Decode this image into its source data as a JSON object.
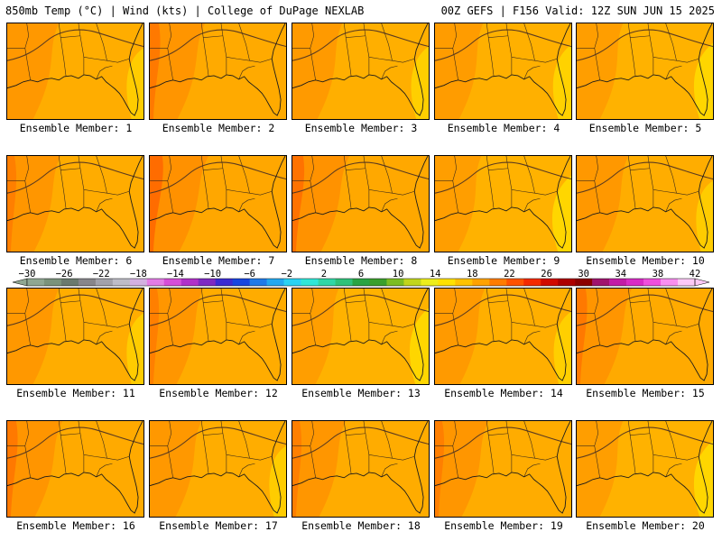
{
  "header": {
    "left_text": "850mb Temp (°C) | Wind (kts) | College of DuPage NEXLAB",
    "right_text": "00Z GEFS | F156 Valid: 12Z SUN JUN 15 2025"
  },
  "colorbar": {
    "tick_labels": [
      "−30",
      "−26",
      "−22",
      "−18",
      "−14",
      "−10",
      "−6",
      "−2",
      "2",
      "6",
      "10",
      "14",
      "18",
      "22",
      "26",
      "30",
      "34",
      "38",
      "42"
    ],
    "colors": [
      "#8fa792",
      "#7a937c",
      "#6a7a6e",
      "#87868a",
      "#a2a2aa",
      "#bdbdc7",
      "#d3b1e1",
      "#e37ce6",
      "#d64fd9",
      "#b030c9",
      "#7e2ac2",
      "#3b2bd3",
      "#1846e0",
      "#1f7ae8",
      "#23a8ef",
      "#2ad2f2",
      "#2fe7d7",
      "#30d7a6",
      "#2fc27a",
      "#2aa443",
      "#3a9f2c",
      "#7cbd22",
      "#c1d51c",
      "#eded1a",
      "#ffe100",
      "#ffc200",
      "#ffa200",
      "#ff7c00",
      "#ff5200",
      "#f42a00",
      "#d10a00",
      "#ad0000",
      "#8c0000",
      "#a0146e",
      "#c21ca7",
      "#d92bc5",
      "#f04fdc",
      "#f98ff0",
      "#fcc9f7"
    ]
  },
  "members": [
    {
      "label": "Ensemble Member: 1",
      "temp_level": 0.45
    },
    {
      "label": "Ensemble Member: 2",
      "temp_level": 0.55
    },
    {
      "label": "Ensemble Member: 3",
      "temp_level": 0.4
    },
    {
      "label": "Ensemble Member: 4",
      "temp_level": 0.35
    },
    {
      "label": "Ensemble Member: 5",
      "temp_level": 0.3
    },
    {
      "label": "Ensemble Member: 6",
      "temp_level": 0.5
    },
    {
      "label": "Ensemble Member: 7",
      "temp_level": 0.65
    },
    {
      "label": "Ensemble Member: 8",
      "temp_level": 0.6
    },
    {
      "label": "Ensemble Member: 9",
      "temp_level": 0.3
    },
    {
      "label": "Ensemble Member: 10",
      "temp_level": 0.45
    },
    {
      "label": "Ensemble Member: 11",
      "temp_level": 0.45
    },
    {
      "label": "Ensemble Member: 12",
      "temp_level": 0.5
    },
    {
      "label": "Ensemble Member: 13",
      "temp_level": 0.3
    },
    {
      "label": "Ensemble Member: 14",
      "temp_level": 0.4
    },
    {
      "label": "Ensemble Member: 15",
      "temp_level": 0.55
    },
    {
      "label": "Ensemble Member: 16",
      "temp_level": 0.55
    },
    {
      "label": "Ensemble Member: 17",
      "temp_level": 0.45
    },
    {
      "label": "Ensemble Member: 18",
      "temp_level": 0.5
    },
    {
      "label": "Ensemble Member: 19",
      "temp_level": 0.5
    },
    {
      "label": "Ensemble Member: 20",
      "temp_level": 0.3
    }
  ]
}
